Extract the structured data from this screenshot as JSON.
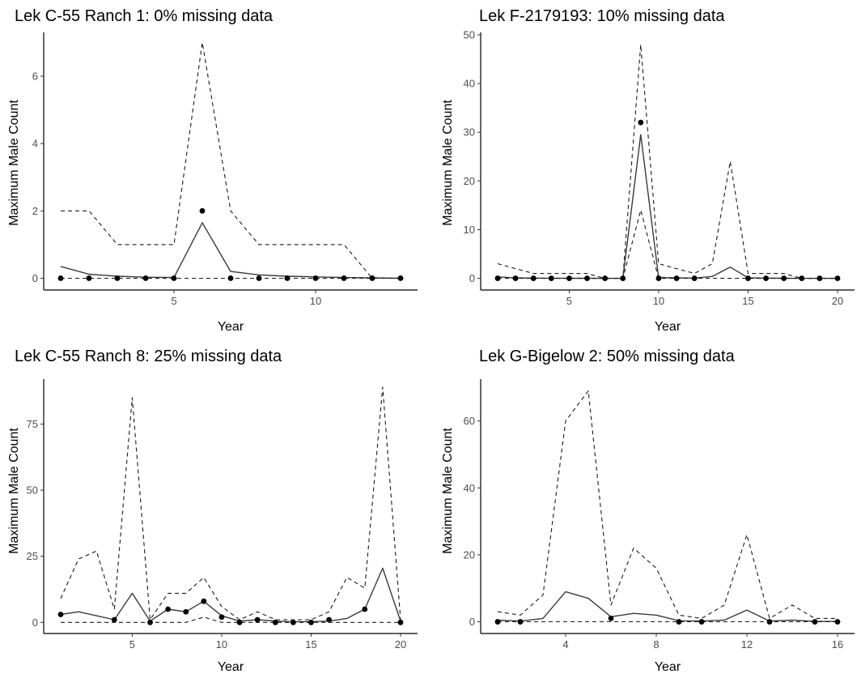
{
  "chart_data": [
    {
      "type": "line",
      "title": "Lek C-55 Ranch 1: 0% missing data",
      "xlabel": "Year",
      "ylabel": "Maximum Male Count",
      "xlim": [
        0.4,
        13.6
      ],
      "ylim": [
        -0.35,
        7.3
      ],
      "xticks": [
        5,
        10
      ],
      "yticks": [
        0,
        2,
        4,
        6
      ],
      "grid": false,
      "legend": "none",
      "series": [
        {
          "style": "dashed",
          "role": "upper",
          "x": [
            1,
            2,
            3,
            4,
            5,
            6,
            7,
            8,
            9,
            10,
            11,
            12,
            13
          ],
          "y": [
            2,
            2,
            1,
            1,
            1,
            7,
            2,
            1,
            1,
            1,
            1,
            0,
            0
          ]
        },
        {
          "style": "solid",
          "role": "estimate",
          "x": [
            1,
            2,
            3,
            4,
            5,
            6,
            7,
            8,
            9,
            10,
            11,
            12,
            13
          ],
          "y": [
            0.35,
            0.12,
            0.06,
            0.03,
            0.02,
            1.65,
            0.2,
            0.1,
            0.06,
            0.04,
            0.02,
            0.01,
            0
          ]
        },
        {
          "style": "dashed",
          "role": "lower",
          "x": [
            1,
            2,
            3,
            4,
            5,
            6,
            7,
            8,
            9,
            10,
            11,
            12,
            13
          ],
          "y": [
            0,
            0,
            0,
            0,
            0,
            0,
            0,
            0,
            0,
            0,
            0,
            0,
            0
          ]
        },
        {
          "style": "points",
          "role": "observed",
          "x": [
            1,
            2,
            3,
            4,
            5,
            6,
            7,
            8,
            9,
            10,
            11,
            12,
            13
          ],
          "y": [
            0,
            0,
            0,
            0,
            0,
            2,
            0,
            0,
            0,
            0,
            0,
            0,
            0
          ]
        }
      ]
    },
    {
      "type": "line",
      "title": "Lek F-2179193: 10% missing data",
      "xlabel": "Year",
      "ylabel": "Maximum Male Count",
      "xlim": [
        0.05,
        20.95
      ],
      "ylim": [
        -2.4,
        50.5
      ],
      "xticks": [
        5,
        10,
        15,
        20
      ],
      "yticks": [
        0,
        10,
        20,
        30,
        40,
        50
      ],
      "grid": false,
      "legend": "none",
      "series": [
        {
          "style": "dashed",
          "role": "upper",
          "x": [
            1,
            2,
            3,
            4,
            5,
            6,
            7,
            8,
            9,
            10,
            11,
            12,
            13,
            14,
            15,
            16,
            17,
            18,
            19,
            20
          ],
          "y": [
            3,
            2,
            1,
            1,
            1,
            1,
            0,
            0,
            48,
            3,
            2,
            1,
            3,
            24,
            1,
            1,
            1,
            0,
            0,
            0
          ]
        },
        {
          "style": "solid",
          "role": "estimate",
          "x": [
            1,
            2,
            3,
            4,
            5,
            6,
            7,
            8,
            9,
            10,
            11,
            12,
            13,
            14,
            15,
            16,
            17,
            18,
            19,
            20
          ],
          "y": [
            0.3,
            0.1,
            0.05,
            0.03,
            0.02,
            0.01,
            0,
            0,
            29.5,
            0.2,
            0.1,
            0.05,
            0.4,
            2.3,
            0.1,
            0.05,
            0.02,
            0,
            0,
            0
          ]
        },
        {
          "style": "dashed",
          "role": "lower",
          "x": [
            1,
            2,
            3,
            4,
            5,
            6,
            7,
            8,
            9,
            10,
            11,
            12,
            13,
            14,
            15,
            16,
            17,
            18,
            19,
            20
          ],
          "y": [
            0,
            0,
            0,
            0,
            0,
            0,
            0,
            0,
            14,
            0,
            0,
            0,
            0,
            0,
            0,
            0,
            0,
            0,
            0,
            0
          ]
        },
        {
          "style": "points",
          "role": "observed",
          "x": [
            1,
            2,
            3,
            4,
            5,
            6,
            7,
            8,
            9,
            10,
            11,
            12,
            13,
            14,
            15,
            16,
            17,
            18,
            19,
            20
          ],
          "y": [
            0,
            0,
            0,
            0,
            0,
            0,
            0,
            0,
            32,
            0,
            0,
            0,
            null,
            null,
            0,
            0,
            0,
            0,
            0,
            0
          ]
        }
      ]
    },
    {
      "type": "line",
      "title": "Lek C-55 Ranch 8: 25% missing data",
      "xlabel": "Year",
      "ylabel": "Maximum Male Count",
      "xlim": [
        0.05,
        20.95
      ],
      "ylim": [
        -4.2,
        92
      ],
      "xticks": [
        5,
        10,
        15,
        20
      ],
      "yticks": [
        0,
        25,
        50,
        75
      ],
      "grid": false,
      "legend": "none",
      "series": [
        {
          "style": "dashed",
          "role": "upper",
          "x": [
            1,
            2,
            3,
            4,
            5,
            6,
            7,
            8,
            9,
            10,
            11,
            12,
            13,
            14,
            15,
            16,
            17,
            18,
            19,
            20
          ],
          "y": [
            9,
            24,
            27,
            5,
            85,
            1,
            11,
            11,
            17,
            6,
            1,
            4,
            1,
            1,
            1,
            4,
            17,
            13,
            89,
            1
          ]
        },
        {
          "style": "solid",
          "role": "estimate",
          "x": [
            1,
            2,
            3,
            4,
            5,
            6,
            7,
            8,
            9,
            10,
            11,
            12,
            13,
            14,
            15,
            16,
            17,
            18,
            19,
            20
          ],
          "y": [
            3,
            4,
            2.5,
            1,
            11,
            0.5,
            5,
            4,
            8,
            2.5,
            0.5,
            1,
            0.5,
            0.2,
            0.3,
            0.5,
            1.5,
            5,
            20.5,
            0.5
          ]
        },
        {
          "style": "dashed",
          "role": "lower",
          "x": [
            1,
            2,
            3,
            4,
            5,
            6,
            7,
            8,
            9,
            10,
            11,
            12,
            13,
            14,
            15,
            16,
            17,
            18,
            19,
            20
          ],
          "y": [
            0,
            0,
            0,
            0,
            0,
            0,
            0,
            0,
            2,
            0,
            0,
            0,
            0,
            0,
            0,
            0,
            0,
            0,
            0,
            0
          ]
        },
        {
          "style": "points",
          "role": "observed",
          "x": [
            1,
            4,
            6,
            7,
            8,
            9,
            10,
            11,
            12,
            13,
            14,
            15,
            16,
            18,
            20
          ],
          "y": [
            3,
            1,
            0,
            5,
            4,
            8,
            2,
            0,
            1,
            0,
            0,
            0,
            1,
            5,
            0
          ]
        }
      ]
    },
    {
      "type": "line",
      "title": "Lek G-Bigelow 2: 50% missing data",
      "xlabel": "Year",
      "ylabel": "Maximum Male Count",
      "xlim": [
        0.25,
        16.75
      ],
      "ylim": [
        -3.5,
        72.5
      ],
      "xticks": [
        4,
        8,
        12,
        16
      ],
      "yticks": [
        0,
        20,
        40,
        60
      ],
      "grid": false,
      "legend": "none",
      "series": [
        {
          "style": "dashed",
          "role": "upper",
          "x": [
            1,
            2,
            3,
            4,
            5,
            6,
            7,
            8,
            9,
            10,
            11,
            12,
            13,
            14,
            15,
            16
          ],
          "y": [
            3,
            2,
            8,
            60,
            69,
            5,
            22,
            16,
            2,
            1,
            5,
            26,
            1,
            5,
            1,
            1
          ]
        },
        {
          "style": "solid",
          "role": "estimate",
          "x": [
            1,
            2,
            3,
            4,
            5,
            6,
            7,
            8,
            9,
            10,
            11,
            12,
            13,
            14,
            15,
            16
          ],
          "y": [
            0.5,
            0.2,
            1,
            9,
            7,
            1.5,
            2.5,
            2,
            0.3,
            0.2,
            0.5,
            3.5,
            0.2,
            0.5,
            0.1,
            0.1
          ]
        },
        {
          "style": "dashed",
          "role": "lower",
          "x": [
            1,
            2,
            3,
            4,
            5,
            6,
            7,
            8,
            9,
            10,
            11,
            12,
            13,
            14,
            15,
            16
          ],
          "y": [
            0,
            0,
            0,
            0,
            0,
            0,
            0,
            0,
            0,
            0,
            0,
            0,
            0,
            0,
            0,
            0
          ]
        },
        {
          "style": "points",
          "role": "observed",
          "x": [
            1,
            2,
            6,
            9,
            10,
            13,
            15,
            16
          ],
          "y": [
            0,
            0,
            1,
            0,
            0,
            0,
            0,
            0
          ]
        }
      ]
    }
  ]
}
